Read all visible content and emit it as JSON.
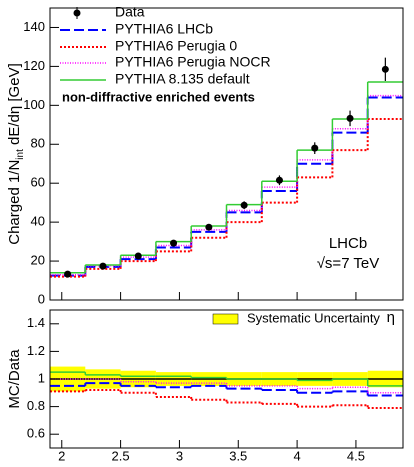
{
  "chart_data": [
    {
      "type": "histogram",
      "ylabel": [
        "Charged 1/N",
        "int",
        " dE/dη [GeV]"
      ],
      "annotations": [
        "non-diffractive enriched events",
        "LHCb",
        "√s=7 TeV"
      ],
      "bins": [
        1.9,
        2.2,
        2.5,
        2.8,
        3.1,
        3.4,
        3.7,
        4.0,
        4.3,
        4.6,
        4.9
      ],
      "xlim": [
        1.9,
        4.9
      ],
      "xticks": [
        2,
        2.5,
        3,
        3.5,
        4,
        4.5
      ],
      "ylim": [
        0,
        150
      ],
      "yticks": [
        0,
        20,
        40,
        60,
        80,
        100,
        120,
        140
      ],
      "data": {
        "name": "Data",
        "color": "#000000",
        "x": [
          2.05,
          2.35,
          2.65,
          2.95,
          3.25,
          3.55,
          3.85,
          4.15,
          4.45,
          4.75
        ],
        "values": [
          13.3,
          17.4,
          22.6,
          29.2,
          37.4,
          48.7,
          61.5,
          78,
          93.3,
          118.5
        ],
        "errors": [
          0.8,
          1,
          1.2,
          1.3,
          1.6,
          2,
          2.5,
          3,
          4,
          6
        ]
      },
      "series": [
        {
          "name": "PYTHIA6 LHCb",
          "color": "#0000ff",
          "style": "dashed",
          "values": [
            12.5,
            17,
            21,
            27,
            35,
            45,
            56,
            70,
            86,
            104
          ]
        },
        {
          "name": "PYTHIA6 Perugia 0",
          "color": "#ff0000",
          "style": "dotted",
          "values": [
            12,
            16,
            20,
            25,
            32,
            40,
            50,
            63,
            77,
            93
          ]
        },
        {
          "name": "PYTHIA6 Perugia NOCR",
          "color": "#ff00ff",
          "style": "fine-dotted",
          "values": [
            13,
            17.5,
            22,
            28,
            36,
            46,
            58,
            72,
            88,
            105
          ]
        },
        {
          "name": "PYTHIA 8.135 default",
          "color": "#33cc33",
          "style": "solid",
          "values": [
            14,
            18,
            23,
            30,
            38,
            49,
            61,
            77,
            93,
            112
          ]
        }
      ]
    },
    {
      "type": "histogram",
      "ylabel": [
        "MC/Data"
      ],
      "xlabel": "η",
      "bins": [
        1.9,
        2.2,
        2.5,
        2.8,
        3.1,
        3.4,
        3.7,
        4.0,
        4.3,
        4.6,
        4.9
      ],
      "xlim": [
        1.9,
        4.9
      ],
      "xticks": [
        2,
        2.5,
        3,
        3.5,
        4,
        4.5
      ],
      "ylim": [
        0.5,
        1.5
      ],
      "yticks": [
        0.6,
        0.8,
        1,
        1.2,
        1.4
      ],
      "band": {
        "name": "Systematic Uncertainty",
        "color": "#ffff00",
        "values": [
          1,
          1,
          1,
          1,
          1,
          1,
          1,
          1,
          1,
          1
        ],
        "errors": [
          0.09,
          0.07,
          0.06,
          0.05,
          0.05,
          0.05,
          0.05,
          0.05,
          0.05,
          0.06
        ]
      },
      "series": [
        {
          "name": "PYTHIA6 LHCb",
          "color": "#0000ff",
          "style": "dashed",
          "values": [
            0.95,
            0.97,
            0.95,
            0.94,
            0.95,
            0.93,
            0.92,
            0.9,
            0.91,
            0.88
          ]
        },
        {
          "name": "PYTHIA6 Perugia 0",
          "color": "#ff0000",
          "style": "dotted",
          "values": [
            0.91,
            0.92,
            0.9,
            0.87,
            0.85,
            0.83,
            0.82,
            0.8,
            0.81,
            0.79
          ]
        },
        {
          "name": "PYTHIA6 Perugia NOCR",
          "color": "#ff00ff",
          "style": "fine-dotted",
          "values": [
            1,
            1,
            0.98,
            0.97,
            0.97,
            0.95,
            0.95,
            0.93,
            0.94,
            0.9
          ]
        },
        {
          "name": "PYTHIA 8.135 default",
          "color": "#33cc33",
          "style": "solid",
          "values": [
            1.05,
            1.03,
            1.02,
            1.02,
            1.01,
            1,
            1,
            0.99,
            1,
            0.95
          ]
        }
      ]
    }
  ]
}
